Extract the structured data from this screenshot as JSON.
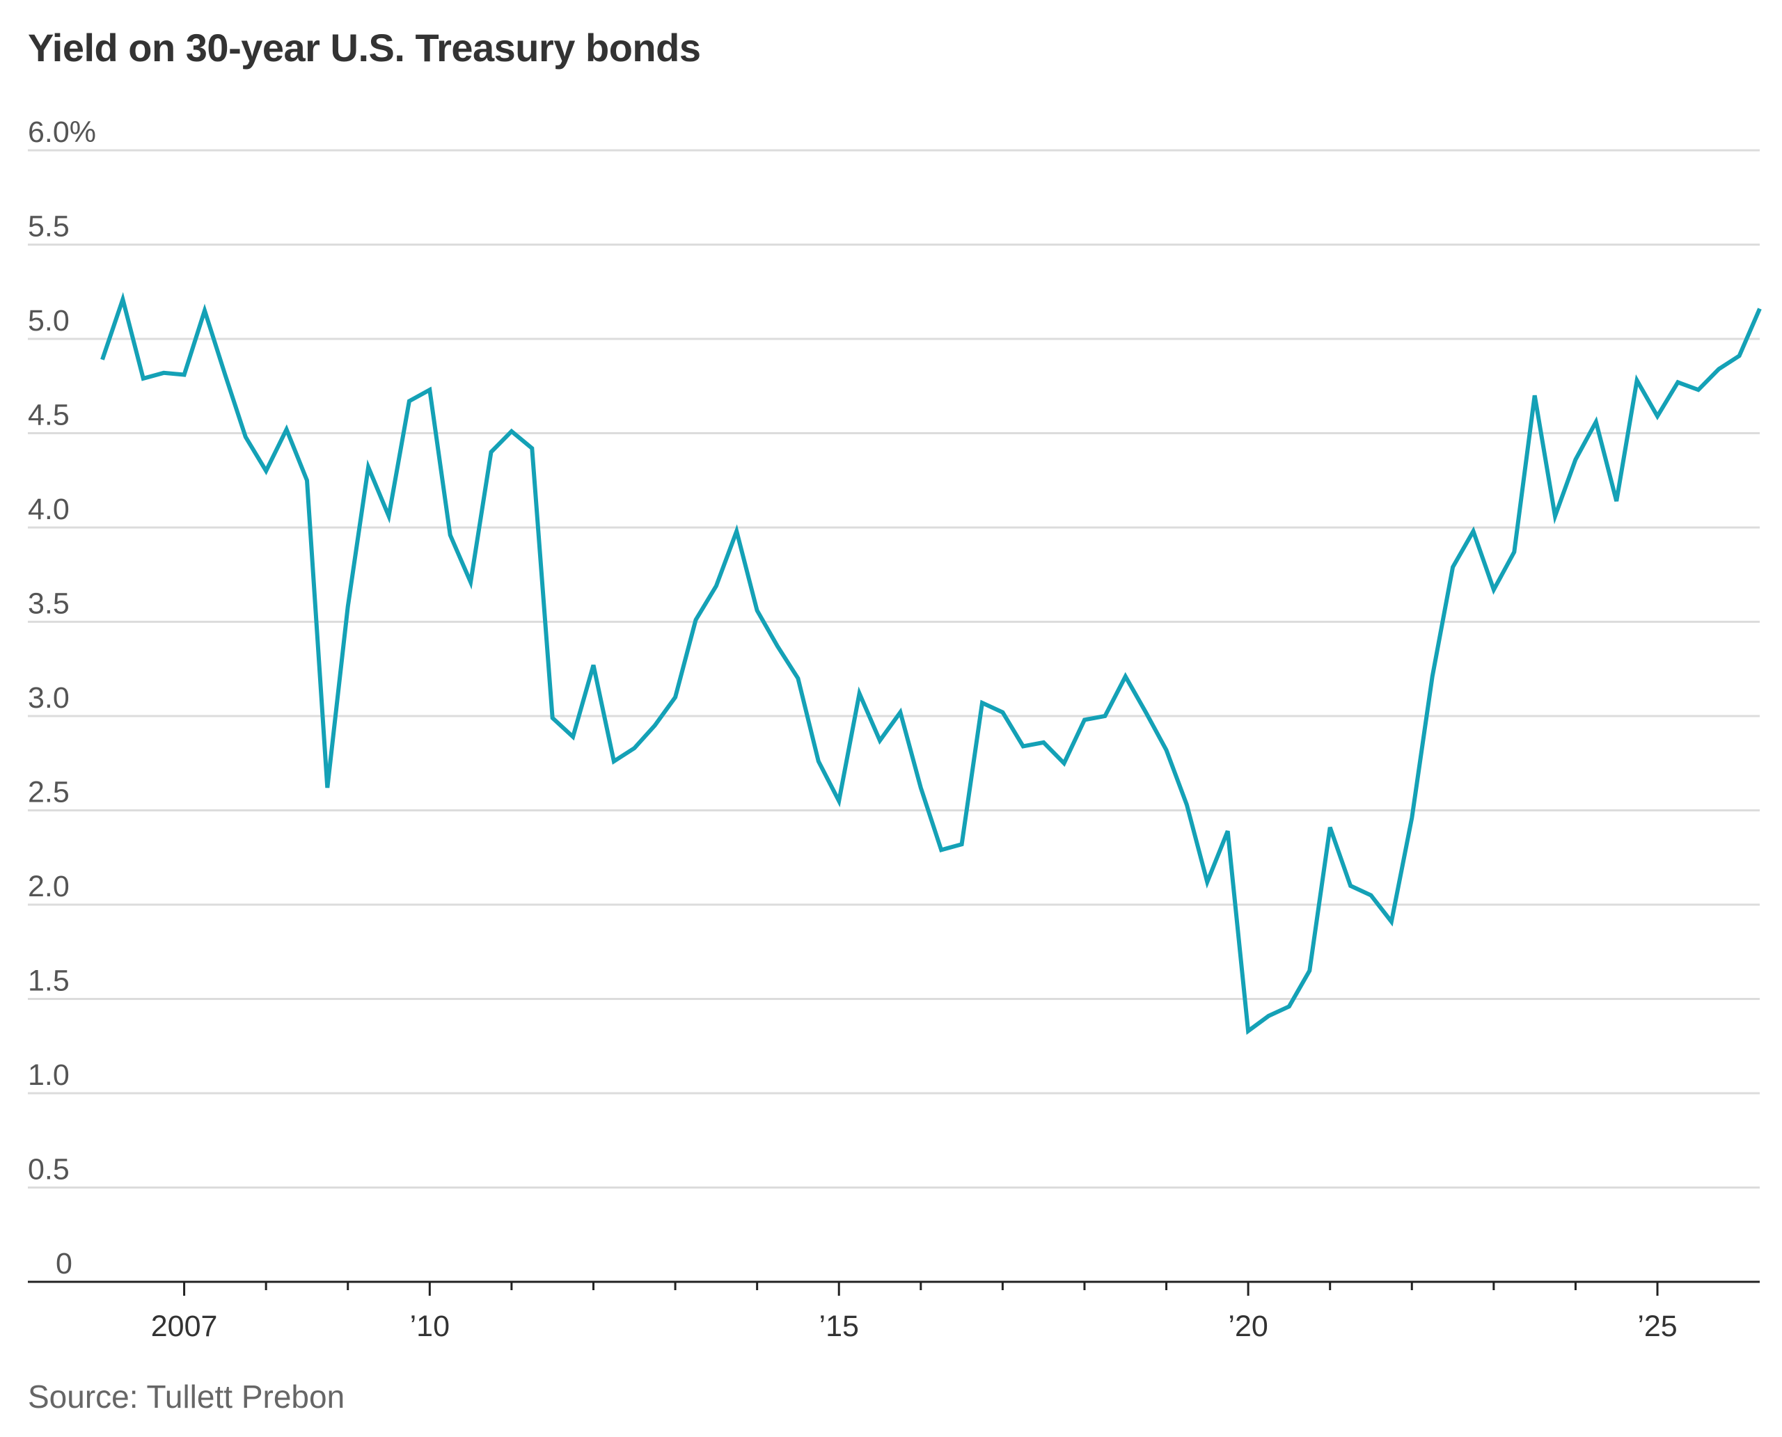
{
  "title": "Yield on 30-year U.S. Treasury bonds",
  "source": "Source: Tullett Prebon",
  "colors": {
    "line": "#14a1b6",
    "grid": "#dcdcdc",
    "axis": "#222222",
    "title": "#333333",
    "source": "#666666"
  },
  "chart_data": {
    "type": "line",
    "title": "Yield on 30-year U.S. Treasury bonds",
    "xlabel": "",
    "ylabel": "",
    "ylim": [
      0,
      6
    ],
    "xlim": [
      2006.0,
      2026.25
    ],
    "grid": true,
    "yticks": [
      {
        "value": 0,
        "label": "0"
      },
      {
        "value": 0.5,
        "label": "0.5"
      },
      {
        "value": 1.0,
        "label": "1.0"
      },
      {
        "value": 1.5,
        "label": "1.5"
      },
      {
        "value": 2.0,
        "label": "2.0"
      },
      {
        "value": 2.5,
        "label": "2.5"
      },
      {
        "value": 3.0,
        "label": "3.0"
      },
      {
        "value": 3.5,
        "label": "3.5"
      },
      {
        "value": 4.0,
        "label": "4.0"
      },
      {
        "value": 4.5,
        "label": "4.5"
      },
      {
        "value": 5.0,
        "label": "5.0"
      },
      {
        "value": 5.5,
        "label": "5.5"
      },
      {
        "value": 6.0,
        "label": "6.0%"
      }
    ],
    "xticks_labeled": [
      {
        "value": 2007,
        "label": "2007"
      },
      {
        "value": 2010,
        "label": "’10"
      },
      {
        "value": 2015,
        "label": "’15"
      },
      {
        "value": 2020,
        "label": "’20"
      },
      {
        "value": 2025,
        "label": "’25"
      }
    ],
    "xticks_minor": [
      2007,
      2008,
      2009,
      2010,
      2011,
      2012,
      2013,
      2014,
      2015,
      2016,
      2017,
      2018,
      2019,
      2020,
      2021,
      2022,
      2023,
      2024,
      2025
    ],
    "series": [
      {
        "x": [
          2006.0,
          2006.25,
          2006.5,
          2006.75,
          2007.0,
          2007.25,
          2007.5,
          2007.75,
          2008.0,
          2008.25,
          2008.5,
          2008.75,
          2009.0,
          2009.25,
          2009.5,
          2009.75,
          2010.0,
          2010.25,
          2010.5,
          2010.75,
          2011.0,
          2011.25,
          2011.5,
          2011.75,
          2012.0,
          2012.25,
          2012.5,
          2012.75,
          2013.0,
          2013.25,
          2013.5,
          2013.75,
          2014.0,
          2014.25,
          2014.5,
          2014.75,
          2015.0,
          2015.25,
          2015.5,
          2015.75,
          2016.0,
          2016.25,
          2016.5,
          2016.75,
          2017.0,
          2017.25,
          2017.5,
          2017.75,
          2018.0,
          2018.25,
          2018.5,
          2018.75,
          2019.0,
          2019.25,
          2019.5,
          2019.75,
          2020.0,
          2020.25,
          2020.5,
          2020.75,
          2021.0,
          2021.25,
          2021.5,
          2021.75,
          2022.0,
          2022.25,
          2022.5,
          2022.75,
          2023.0,
          2023.25,
          2023.5,
          2023.75,
          2024.0,
          2024.25,
          2024.5,
          2024.75,
          2025.0,
          2025.25,
          2025.5,
          2025.75,
          2026.0,
          2026.25
        ],
        "values": [
          4.89,
          5.21,
          4.79,
          4.82,
          4.81,
          5.15,
          4.81,
          4.48,
          4.3,
          4.52,
          4.25,
          2.62,
          3.58,
          4.32,
          4.06,
          4.67,
          4.73,
          3.96,
          3.71,
          4.4,
          4.51,
          4.42,
          2.99,
          2.89,
          3.27,
          2.76,
          2.83,
          2.95,
          3.1,
          3.51,
          3.69,
          3.98,
          3.56,
          3.37,
          3.2,
          2.76,
          2.55,
          3.12,
          2.87,
          3.02,
          2.62,
          2.29,
          2.32,
          3.07,
          3.02,
          2.84,
          2.86,
          2.75,
          2.98,
          3.0,
          3.21,
          3.02,
          2.82,
          2.53,
          2.12,
          2.39,
          1.33,
          1.41,
          1.46,
          1.65,
          2.41,
          2.1,
          2.05,
          1.91,
          2.46,
          3.21,
          3.79,
          3.98,
          3.67,
          3.87,
          4.7,
          4.06,
          4.36,
          4.56,
          4.14,
          4.78,
          4.59,
          4.77,
          4.73,
          4.84,
          4.91,
          5.16
        ]
      }
    ]
  }
}
